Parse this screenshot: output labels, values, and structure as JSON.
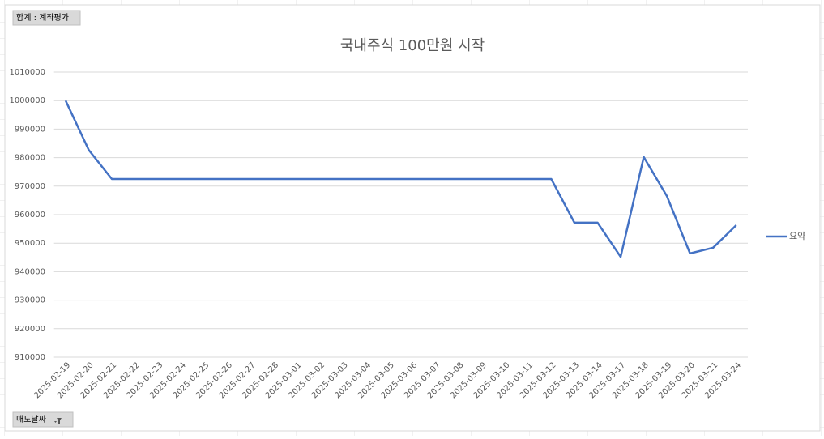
{
  "chart_data": {
    "type": "line",
    "title": "국내주식 100만원 시작",
    "value_field": "합계 : 계좌평가",
    "axis_field": "매도날짜",
    "categories": [
      "2025-02-19",
      "2025-02-20",
      "2025-02-21",
      "2025-02-22",
      "2025-02-23",
      "2025-02-24",
      "2025-02-25",
      "2025-02-26",
      "2025-02-27",
      "2025-02-28",
      "2025-03-01",
      "2025-03-02",
      "2025-03-03",
      "2025-03-04",
      "2025-03-05",
      "2025-03-06",
      "2025-03-07",
      "2025-03-08",
      "2025-03-09",
      "2025-03-10",
      "2025-03-11",
      "2025-03-12",
      "2025-03-13",
      "2025-03-14",
      "2025-03-17",
      "2025-03-18",
      "2025-03-19",
      "2025-03-20",
      "2025-03-21",
      "2025-03-24"
    ],
    "series": [
      {
        "name": "요약",
        "color": "#4472c4",
        "values": [
          1000000,
          982700,
          972500,
          972500,
          972500,
          972500,
          972500,
          972500,
          972500,
          972500,
          972500,
          972500,
          972500,
          972500,
          972500,
          972500,
          972500,
          972500,
          972500,
          972500,
          972500,
          972500,
          957200,
          957200,
          945200,
          980200,
          966500,
          946400,
          948400,
          956300
        ]
      }
    ],
    "ylim": [
      910000,
      1010000
    ],
    "yticks": [
      910000,
      920000,
      930000,
      940000,
      950000,
      960000,
      970000,
      980000,
      990000,
      1000000,
      1010000
    ],
    "grid": true,
    "legend": "right"
  }
}
